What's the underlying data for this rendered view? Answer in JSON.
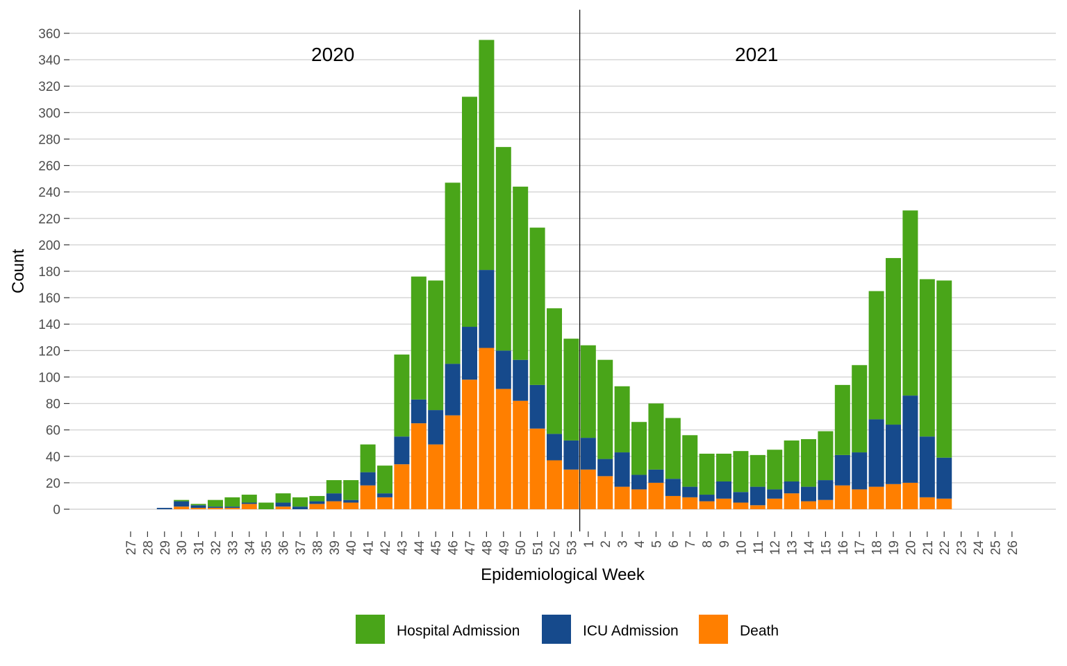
{
  "chart_data": {
    "type": "bar",
    "stacked": true,
    "title": "",
    "xlabel": "Epidemiological Week",
    "ylabel": "Count",
    "ylim": [
      0,
      360
    ],
    "yticks": [
      0,
      20,
      40,
      60,
      80,
      100,
      120,
      140,
      160,
      180,
      200,
      220,
      240,
      260,
      280,
      300,
      320,
      340,
      360
    ],
    "grid": true,
    "legend_position": "bottom",
    "year_labels": [
      {
        "text": "2020",
        "at_category": "40"
      },
      {
        "text": "2021",
        "at_category": "12"
      }
    ],
    "divider_after_category": "53",
    "categories": [
      "27",
      "28",
      "29",
      "30",
      "31",
      "32",
      "33",
      "34",
      "35",
      "36",
      "37",
      "38",
      "39",
      "40",
      "41",
      "42",
      "43",
      "44",
      "45",
      "46",
      "47",
      "48",
      "49",
      "50",
      "51",
      "52",
      "53",
      "1",
      "2",
      "3",
      "4",
      "5",
      "6",
      "7",
      "8",
      "9",
      "10",
      "11",
      "12",
      "13",
      "14",
      "15",
      "16",
      "17",
      "18",
      "19",
      "20",
      "21",
      "22",
      "23",
      "24",
      "25",
      "26"
    ],
    "series": [
      {
        "name": "Death",
        "color": "#FF7F00",
        "values": [
          0,
          0,
          0,
          2,
          1,
          1,
          1,
          4,
          0,
          2,
          0,
          4,
          6,
          5,
          18,
          9,
          34,
          65,
          49,
          71,
          98,
          122,
          91,
          82,
          61,
          37,
          30,
          30,
          25,
          17,
          15,
          20,
          10,
          9,
          6,
          8,
          5,
          3,
          8,
          12,
          6,
          7,
          18,
          15,
          17,
          19,
          20,
          9,
          8,
          0,
          0,
          0,
          0
        ]
      },
      {
        "name": "ICU Admission",
        "color": "#164A8C",
        "values": [
          0,
          0,
          1,
          4,
          2,
          1,
          1,
          1,
          0,
          3,
          2,
          2,
          6,
          2,
          10,
          3,
          21,
          18,
          26,
          39,
          40,
          59,
          29,
          31,
          33,
          20,
          22,
          24,
          13,
          26,
          11,
          10,
          13,
          8,
          5,
          13,
          8,
          14,
          7,
          9,
          11,
          15,
          23,
          28,
          51,
          45,
          66,
          46,
          31,
          0,
          0,
          0,
          0
        ]
      },
      {
        "name": "Hospital Admission",
        "color": "#49A519",
        "values": [
          0,
          0,
          0,
          1,
          1,
          5,
          7,
          6,
          5,
          7,
          7,
          4,
          10,
          15,
          21,
          21,
          62,
          93,
          98,
          137,
          174,
          174,
          154,
          131,
          119,
          95,
          77,
          70,
          75,
          50,
          40,
          50,
          46,
          39,
          31,
          21,
          31,
          24,
          30,
          31,
          36,
          37,
          53,
          66,
          97,
          126,
          140,
          119,
          134,
          0,
          0,
          0,
          0
        ]
      }
    ]
  }
}
